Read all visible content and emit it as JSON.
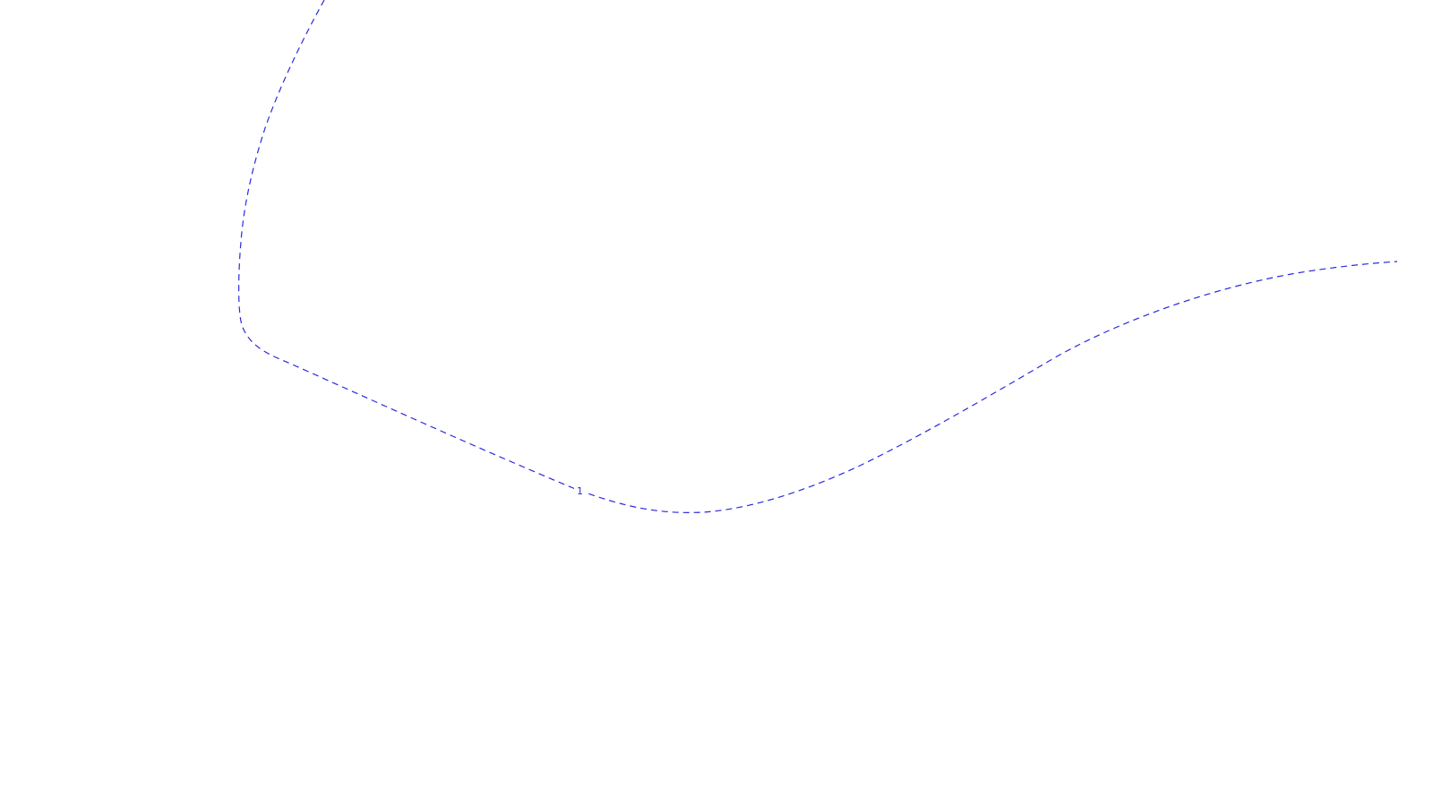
{
  "map": {
    "background_color": "#ffffff",
    "contour": {
      "label": "1",
      "color": "#2a2ae0",
      "style": "dashed"
    }
  }
}
